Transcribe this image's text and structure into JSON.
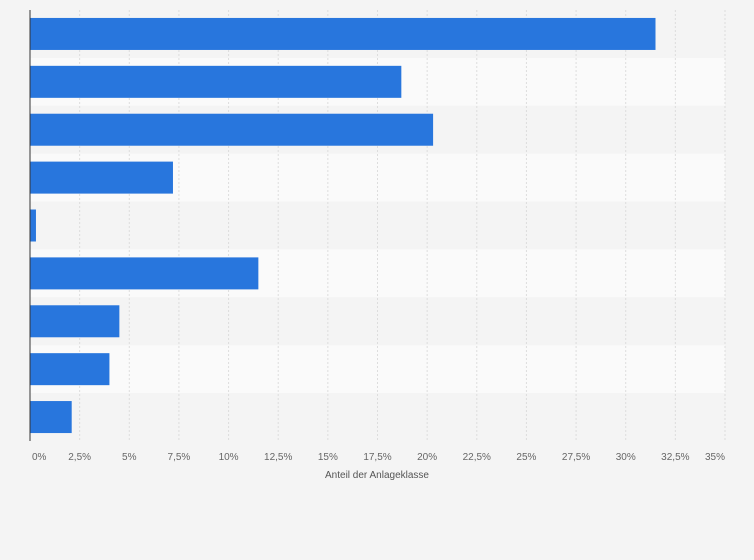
{
  "chart_data": {
    "type": "bar",
    "orientation": "horizontal",
    "categories": [
      "",
      "",
      "",
      "",
      "",
      "",
      "",
      "",
      ""
    ],
    "values": [
      31.5,
      18.7,
      20.3,
      7.2,
      0.3,
      11.5,
      4.5,
      4.0,
      2.1
    ],
    "xlabel": "Anteil der Anlageklasse",
    "xlim": [
      0,
      35
    ],
    "xticks": [
      "0%",
      "2,5%",
      "5%",
      "7,5%",
      "10%",
      "12,5%",
      "15%",
      "17,5%",
      "20%",
      "22,5%",
      "25%",
      "27,5%",
      "30%",
      "32,5%",
      "35%"
    ],
    "grid": true,
    "bar_color": "#2876dd",
    "band_colors": [
      "#f4f4f4",
      "#fafafa"
    ],
    "gridline_color": "#dddddd"
  }
}
